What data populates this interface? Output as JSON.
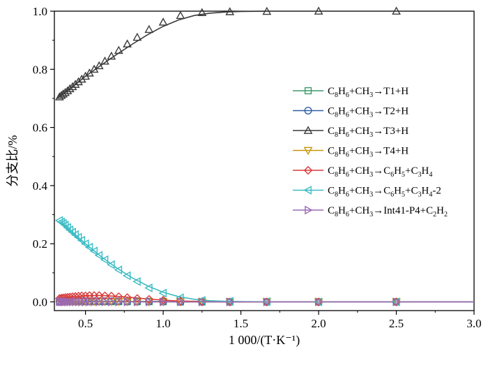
{
  "chart_data": {
    "type": "line",
    "title": "",
    "xlabel": "1 000/(T·K⁻¹)",
    "ylabel": "分支比/%",
    "xlim": [
      0.3,
      3.0
    ],
    "ylim": [
      -0.03,
      1.0
    ],
    "xticks": [
      "0.5",
      "1.0",
      "1.5",
      "2.0",
      "2.5",
      "3.0"
    ],
    "yticks": [
      "0.0",
      "0.2",
      "0.4",
      "0.6",
      "0.8",
      "1.0"
    ],
    "xtick_values": [
      0.5,
      1.0,
      1.5,
      2.0,
      2.5,
      3.0
    ],
    "ytick_values": [
      0.0,
      0.2,
      0.4,
      0.6,
      0.8,
      1.0
    ],
    "legend_position": "right-middle",
    "x": [
      0.333,
      0.345,
      0.357,
      0.37,
      0.385,
      0.4,
      0.417,
      0.435,
      0.455,
      0.476,
      0.5,
      0.526,
      0.556,
      0.588,
      0.625,
      0.667,
      0.714,
      0.769,
      0.833,
      0.909,
      1.0,
      1.111,
      1.25,
      1.429,
      1.667,
      2.0,
      2.5
    ],
    "line_x": [
      0.333,
      0.4,
      0.5,
      0.6,
      0.7,
      0.8,
      0.9,
      1.0,
      1.1,
      1.2,
      1.3,
      1.4,
      1.5,
      1.7,
      2.0,
      2.5,
      3.0
    ],
    "series": [
      {
        "name": "C8H6+CH3→T1+H",
        "color": "#3a9a6a",
        "marker": "square",
        "values": [
          0.001,
          0.001,
          0.001,
          0.001,
          0.001,
          0.001,
          0.001,
          0.001,
          0.001,
          0.001,
          0.001,
          0.001,
          0.001,
          0.001,
          0.001,
          0.001,
          0.001,
          0.001,
          0.001,
          0.001,
          0.001,
          0.0,
          0.0,
          0.0,
          0.0,
          0.0,
          0.0
        ],
        "line": [
          0.001,
          0.001,
          0.001,
          0.001,
          0.001,
          0.001,
          0.001,
          0.001,
          0.0,
          0.0,
          0.0,
          0.0,
          0.0,
          0.0,
          0.0,
          0.0,
          0.0
        ]
      },
      {
        "name": "C8H6+CH3→T2+H",
        "color": "#2f5ea8",
        "marker": "circle",
        "values": [
          0.002,
          0.002,
          0.002,
          0.002,
          0.002,
          0.002,
          0.002,
          0.002,
          0.002,
          0.002,
          0.002,
          0.002,
          0.002,
          0.002,
          0.002,
          0.002,
          0.002,
          0.001,
          0.001,
          0.001,
          0.001,
          0.0,
          0.0,
          0.0,
          0.0,
          0.0,
          0.0
        ],
        "line": [
          0.002,
          0.002,
          0.002,
          0.002,
          0.002,
          0.001,
          0.001,
          0.001,
          0.0,
          0.0,
          0.0,
          0.0,
          0.0,
          0.0,
          0.0,
          0.0,
          0.0
        ]
      },
      {
        "name": "C8H6+CH3→T3+H",
        "color": "#3a3a3a",
        "marker": "triangle-up",
        "values": [
          0.705,
          0.71,
          0.715,
          0.72,
          0.726,
          0.733,
          0.74,
          0.748,
          0.757,
          0.766,
          0.776,
          0.787,
          0.8,
          0.812,
          0.828,
          0.845,
          0.865,
          0.887,
          0.91,
          0.937,
          0.962,
          0.985,
          0.995,
          0.998,
          0.999,
          1.0,
          1.0
        ],
        "line": [
          0.704,
          0.733,
          0.776,
          0.814,
          0.851,
          0.886,
          0.919,
          0.948,
          0.97,
          0.985,
          0.993,
          0.997,
          0.999,
          1.0,
          1.0,
          1.0,
          1.0
        ]
      },
      {
        "name": "C8H6+CH3→T4+H",
        "color": "#c8960a",
        "marker": "triangle-down",
        "values": [
          0.001,
          0.001,
          0.001,
          0.001,
          0.001,
          0.001,
          0.001,
          0.001,
          0.001,
          0.001,
          0.001,
          0.001,
          0.001,
          0.001,
          0.001,
          0.001,
          0.001,
          0.001,
          0.0,
          0.0,
          0.0,
          0.0,
          0.0,
          0.0,
          0.0,
          0.0,
          0.0
        ],
        "line": [
          0.001,
          0.001,
          0.001,
          0.001,
          0.001,
          0.001,
          0.0,
          0.0,
          0.0,
          0.0,
          0.0,
          0.0,
          0.0,
          0.0,
          0.0,
          0.0,
          0.0
        ]
      },
      {
        "name": "C8H6+CH3→C6H5+C3H4",
        "color": "#d93a3a",
        "marker": "diamond",
        "values": [
          0.012,
          0.013,
          0.014,
          0.015,
          0.016,
          0.017,
          0.018,
          0.019,
          0.02,
          0.021,
          0.021,
          0.022,
          0.022,
          0.022,
          0.021,
          0.02,
          0.018,
          0.015,
          0.012,
          0.009,
          0.006,
          0.003,
          0.001,
          0.0,
          0.0,
          0.0,
          0.0
        ],
        "line": [
          0.012,
          0.017,
          0.021,
          0.022,
          0.019,
          0.015,
          0.01,
          0.006,
          0.003,
          0.002,
          0.001,
          0.0,
          0.0,
          0.0,
          0.0,
          0.0,
          0.0
        ]
      },
      {
        "name": "C8H6+CH3→C6H5+C3H4-2",
        "color": "#3bbcc4",
        "marker": "triangle-left",
        "values": [
          0.28,
          0.275,
          0.27,
          0.264,
          0.256,
          0.248,
          0.24,
          0.231,
          0.222,
          0.212,
          0.2,
          0.188,
          0.175,
          0.16,
          0.145,
          0.128,
          0.11,
          0.09,
          0.07,
          0.048,
          0.03,
          0.014,
          0.005,
          0.002,
          0.001,
          0.0,
          0.0
        ],
        "line": [
          0.281,
          0.248,
          0.2,
          0.156,
          0.117,
          0.083,
          0.055,
          0.033,
          0.018,
          0.009,
          0.004,
          0.002,
          0.001,
          0.0,
          0.0,
          0.0,
          0.0
        ]
      },
      {
        "name": "C8H6+CH3→Int41-P4+C2H2",
        "color": "#9b6ab5",
        "marker": "triangle-right",
        "values": [
          0.0,
          0.0,
          0.0,
          0.0,
          0.0,
          0.0,
          0.0,
          0.0,
          0.0,
          0.0,
          0.0,
          0.0,
          0.0,
          0.0,
          0.0,
          0.0,
          0.0,
          0.0,
          0.0,
          0.0,
          0.0,
          0.0,
          0.0,
          0.0,
          0.0,
          0.0,
          0.0
        ],
        "line": [
          0.0,
          0.0,
          0.0,
          0.0,
          0.0,
          0.0,
          0.0,
          0.0,
          0.0,
          0.0,
          0.0,
          0.0,
          0.0,
          0.0,
          0.0,
          0.0,
          0.0
        ]
      }
    ],
    "legend": [
      {
        "prefix": "C",
        "parts": [
          [
            "C",
            ""
          ],
          [
            "8",
            "sub"
          ],
          [
            "H",
            ""
          ],
          [
            "6",
            "sub"
          ],
          [
            "+CH",
            ""
          ],
          [
            "3",
            "sub"
          ],
          [
            "→T1+H",
            ""
          ]
        ]
      },
      {
        "prefix": "C",
        "parts": [
          [
            "C",
            ""
          ],
          [
            "8",
            "sub"
          ],
          [
            "H",
            ""
          ],
          [
            "6",
            "sub"
          ],
          [
            "+CH",
            ""
          ],
          [
            "3",
            "sub"
          ],
          [
            "→T2+H",
            ""
          ]
        ]
      },
      {
        "prefix": "C",
        "parts": [
          [
            "C",
            ""
          ],
          [
            "8",
            "sub"
          ],
          [
            "H",
            ""
          ],
          [
            "6",
            "sub"
          ],
          [
            "+CH",
            ""
          ],
          [
            "3",
            "sub"
          ],
          [
            "→T3+H",
            ""
          ]
        ]
      },
      {
        "prefix": "C",
        "parts": [
          [
            "C",
            ""
          ],
          [
            "8",
            "sub"
          ],
          [
            "H",
            ""
          ],
          [
            "6",
            "sub"
          ],
          [
            "+CH",
            ""
          ],
          [
            "3",
            "sub"
          ],
          [
            "→T4+H",
            ""
          ]
        ]
      },
      {
        "prefix": "C",
        "parts": [
          [
            "C",
            ""
          ],
          [
            "8",
            "sub"
          ],
          [
            "H",
            ""
          ],
          [
            "6",
            "sub"
          ],
          [
            "+CH",
            ""
          ],
          [
            "3",
            "sub"
          ],
          [
            "→C",
            ""
          ],
          [
            "6",
            "sub"
          ],
          [
            "H",
            ""
          ],
          [
            "5",
            "sub"
          ],
          [
            "+C",
            ""
          ],
          [
            "3",
            "sub"
          ],
          [
            "H",
            ""
          ],
          [
            "4",
            "sub"
          ]
        ]
      },
      {
        "prefix": "C",
        "parts": [
          [
            "C",
            ""
          ],
          [
            "8",
            "sub"
          ],
          [
            "H",
            ""
          ],
          [
            "6",
            "sub"
          ],
          [
            "+CH",
            ""
          ],
          [
            "3",
            "sub"
          ],
          [
            "→C",
            ""
          ],
          [
            "6",
            "sub"
          ],
          [
            "H",
            ""
          ],
          [
            "5",
            "sub"
          ],
          [
            "+C",
            ""
          ],
          [
            "3",
            "sub"
          ],
          [
            "H",
            ""
          ],
          [
            "4",
            "sub"
          ],
          [
            "-2",
            ""
          ]
        ]
      },
      {
        "prefix": "C",
        "parts": [
          [
            "C",
            ""
          ],
          [
            "8",
            "sub"
          ],
          [
            "H",
            ""
          ],
          [
            "6",
            "sub"
          ],
          [
            "+CH",
            ""
          ],
          [
            "3",
            "sub"
          ],
          [
            "→Int41-P4+C",
            ""
          ],
          [
            "2",
            "sub"
          ],
          [
            "H",
            ""
          ],
          [
            "2",
            "sub"
          ]
        ]
      }
    ]
  }
}
